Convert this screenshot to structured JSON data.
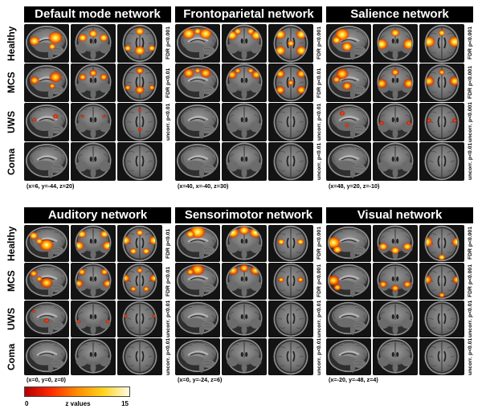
{
  "figure": {
    "row_labels": [
      "Healthy",
      "MCS",
      "UWS",
      "Coma"
    ],
    "blocks": [
      {
        "panels": [
          {
            "title": "Default mode network",
            "coordinates": "(x=6, y=-44, z=20)",
            "thresholds": [
              "FDR p<0.001",
              "FDR p<0.01",
              "uncorr. p<0.01",
              null
            ]
          },
          {
            "title": "Frontoparietal network",
            "coordinates": "(x=40, x=-40, z=30)",
            "thresholds": [
              "FDR p<0.001",
              "FDR p<0.01",
              "uncorr. p<0.01",
              "uncorr. p<0.01"
            ]
          },
          {
            "title": "Salience network",
            "coordinates": "(x=48, y=20, z=-10)",
            "thresholds": [
              "FDR p<0.001",
              "FDR p<0.001",
              "uncorr. p<0.001",
              "uncorr. p<0.01"
            ]
          }
        ]
      },
      {
        "panels": [
          {
            "title": "Auditory network",
            "coordinates": "(x=0, y=0, z=0)",
            "thresholds": [
              "FDR p<0.01",
              "FDR p<0.01",
              "uncorr. p<0.01",
              "uncorr. p<0.01"
            ]
          },
          {
            "title": "Sensorimotor network",
            "coordinates": "(x=0, y=-24, z=6)",
            "thresholds": [
              "FDR p<0.001",
              "FDR p<0.001",
              "uncorr. p<0.01",
              "uncorr. p<0.01"
            ]
          },
          {
            "title": "Visual network",
            "coordinates": "(x=-20, y=-48, z=4)",
            "thresholds": [
              "FDR p<0.001",
              "FDR p<0.001",
              "uncorr. p<0.01",
              "uncorr. p<0.01"
            ]
          }
        ]
      }
    ]
  },
  "colorbar": {
    "min": "0",
    "label": "z values",
    "max": "15",
    "colors": [
      "#b30000",
      "#ff2a00",
      "#ff8c00",
      "#ffd21e",
      "#fffbe0"
    ]
  }
}
